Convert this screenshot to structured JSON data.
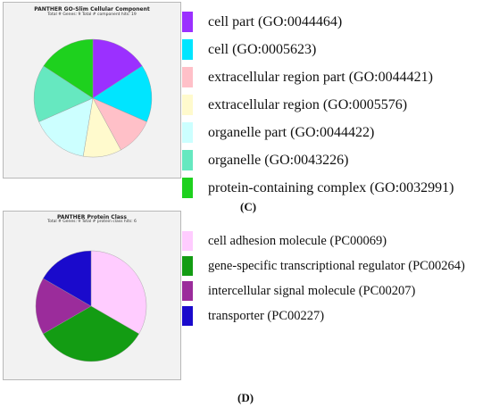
{
  "chart_data": [
    {
      "type": "pie",
      "panel_label": "(C)",
      "title": "PANTHER GO-Slim Cellular Component",
      "subtitle": "Total # Genes: 9    Total # component hits: 19",
      "legend_position": "right",
      "slices": [
        {
          "label": "cell part (GO:0044464)",
          "value": 3,
          "color": "#9b30ff"
        },
        {
          "label": "cell (GO:0005623)",
          "value": 3,
          "color": "#00e5ff"
        },
        {
          "label": "extracellular region part (GO:0044421)",
          "value": 2,
          "color": "#ffc0c8"
        },
        {
          "label": "extracellular region (GO:0005576)",
          "value": 2,
          "color": "#fffacd"
        },
        {
          "label": "organelle part (GO:0044422)",
          "value": 3,
          "color": "#ccffff"
        },
        {
          "label": "organelle (GO:0043226)",
          "value": 3,
          "color": "#66e8c0"
        },
        {
          "label": "protein-containing complex (GO:0032991)",
          "value": 3,
          "color": "#1ed11e"
        }
      ]
    },
    {
      "type": "pie",
      "panel_label": "(D)",
      "title": "PANTHER Protein Class",
      "subtitle": "Total # Genes: 9    Total # protein class hits: 6",
      "legend_position": "right",
      "slices": [
        {
          "label": "cell adhesion molecule (PC00069)",
          "value": 2,
          "color": "#ffccff"
        },
        {
          "label": "gene-specific transcriptional regulator (PC00264)",
          "value": 2,
          "color": "#139c13"
        },
        {
          "label": "intercellular signal molecule (PC00207)",
          "value": 1,
          "color": "#9b2c9b"
        },
        {
          "label": "transporter (PC00227)",
          "value": 1,
          "color": "#1a0acc"
        }
      ]
    }
  ]
}
